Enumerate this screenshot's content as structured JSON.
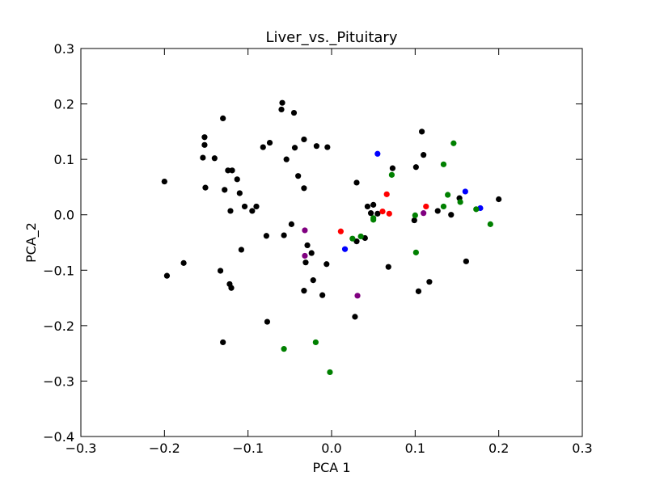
{
  "chart_data": {
    "type": "scatter",
    "title": "Liver_vs._Pituitary",
    "xlabel": "PCA 1",
    "ylabel": "PCA_2",
    "xlim": [
      -0.3,
      0.3
    ],
    "ylim": [
      -0.4,
      0.3
    ],
    "xticks": [
      -0.3,
      -0.2,
      -0.1,
      0.0,
      0.1,
      0.2,
      0.3
    ],
    "xtick_labels": [
      "−0.3",
      "−0.2",
      "−0.1",
      "0.0",
      "0.1",
      "0.2",
      "0.3"
    ],
    "yticks": [
      -0.4,
      -0.3,
      -0.2,
      -0.1,
      0.0,
      0.1,
      0.2,
      0.3
    ],
    "ytick_labels": [
      "−0.4",
      "−0.3",
      "−0.2",
      "−0.1",
      "0.0",
      "0.1",
      "0.2",
      "0.3"
    ],
    "grid": false,
    "legend": false,
    "series": [
      {
        "color": "#000000",
        "points": [
          [
            -0.2,
            0.06
          ],
          [
            -0.197,
            -0.11
          ],
          [
            -0.177,
            -0.087
          ],
          [
            -0.152,
            0.14
          ],
          [
            -0.152,
            0.126
          ],
          [
            -0.154,
            0.103
          ],
          [
            -0.151,
            0.049
          ],
          [
            -0.14,
            0.102
          ],
          [
            -0.13,
            0.174
          ],
          [
            -0.128,
            0.045
          ],
          [
            -0.124,
            0.08
          ],
          [
            -0.119,
            0.08
          ],
          [
            -0.121,
            0.007
          ],
          [
            -0.113,
            0.064
          ],
          [
            -0.11,
            0.039
          ],
          [
            -0.104,
            0.015
          ],
          [
            -0.09,
            0.015
          ],
          [
            -0.095,
            0.007
          ],
          [
            -0.133,
            -0.101
          ],
          [
            -0.122,
            -0.125
          ],
          [
            -0.12,
            -0.132
          ],
          [
            -0.108,
            -0.063
          ],
          [
            -0.13,
            -0.23
          ],
          [
            -0.078,
            -0.038
          ],
          [
            -0.077,
            -0.193
          ],
          [
            -0.082,
            0.122
          ],
          [
            -0.074,
            0.13
          ],
          [
            -0.059,
            0.202
          ],
          [
            -0.06,
            0.19
          ],
          [
            -0.045,
            0.184
          ],
          [
            -0.054,
            0.1
          ],
          [
            -0.044,
            0.121
          ],
          [
            -0.033,
            0.136
          ],
          [
            -0.018,
            0.124
          ],
          [
            -0.005,
            0.122
          ],
          [
            -0.04,
            0.07
          ],
          [
            -0.033,
            0.048
          ],
          [
            -0.048,
            -0.017
          ],
          [
            -0.057,
            -0.037
          ],
          [
            -0.029,
            -0.055
          ],
          [
            -0.031,
            -0.086
          ],
          [
            -0.024,
            -0.069
          ],
          [
            -0.022,
            -0.118
          ],
          [
            -0.033,
            -0.137
          ],
          [
            -0.011,
            -0.145
          ],
          [
            -0.006,
            -0.089
          ],
          [
            0.028,
            -0.184
          ],
          [
            0.03,
            -0.048
          ],
          [
            0.04,
            -0.042
          ],
          [
            0.03,
            0.058
          ],
          [
            0.043,
            0.015
          ],
          [
            0.047,
            0.003
          ],
          [
            0.05,
            0.018
          ],
          [
            0.055,
            0.002
          ],
          [
            0.068,
            -0.094
          ],
          [
            0.073,
            0.084
          ],
          [
            0.099,
            -0.01
          ],
          [
            0.101,
            0.086
          ],
          [
            0.104,
            -0.138
          ],
          [
            0.108,
            0.15
          ],
          [
            0.11,
            0.108
          ],
          [
            0.117,
            -0.121
          ],
          [
            0.127,
            0.007
          ],
          [
            0.143,
            0.0
          ],
          [
            0.153,
            0.03
          ],
          [
            0.161,
            -0.084
          ],
          [
            0.2,
            0.028
          ]
        ]
      },
      {
        "color": "#0000ff",
        "points": [
          [
            0.055,
            0.11
          ],
          [
            0.016,
            -0.062
          ],
          [
            0.16,
            0.042
          ],
          [
            0.178,
            0.012
          ]
        ]
      },
      {
        "color": "#ff0000",
        "points": [
          [
            0.011,
            -0.03
          ],
          [
            0.061,
            0.006
          ],
          [
            0.066,
            0.037
          ],
          [
            0.069,
            0.002
          ],
          [
            0.113,
            0.015
          ]
        ]
      },
      {
        "color": "#008000",
        "points": [
          [
            0.025,
            -0.043
          ],
          [
            0.035,
            -0.039
          ],
          [
            0.05,
            -0.006
          ],
          [
            0.05,
            -0.009
          ],
          [
            0.072,
            0.072
          ],
          [
            0.1,
            -0.001
          ],
          [
            0.101,
            -0.068
          ],
          [
            0.134,
            0.091
          ],
          [
            0.134,
            0.015
          ],
          [
            0.139,
            0.036
          ],
          [
            0.146,
            0.129
          ],
          [
            0.154,
            0.023
          ],
          [
            0.173,
            0.01
          ],
          [
            0.19,
            -0.017
          ],
          [
            -0.057,
            -0.242
          ],
          [
            -0.019,
            -0.23
          ],
          [
            -0.002,
            -0.284
          ]
        ]
      },
      {
        "color": "#800080",
        "points": [
          [
            -0.032,
            -0.028
          ],
          [
            -0.032,
            -0.074
          ],
          [
            0.031,
            -0.146
          ],
          [
            0.11,
            0.003
          ]
        ]
      }
    ]
  }
}
